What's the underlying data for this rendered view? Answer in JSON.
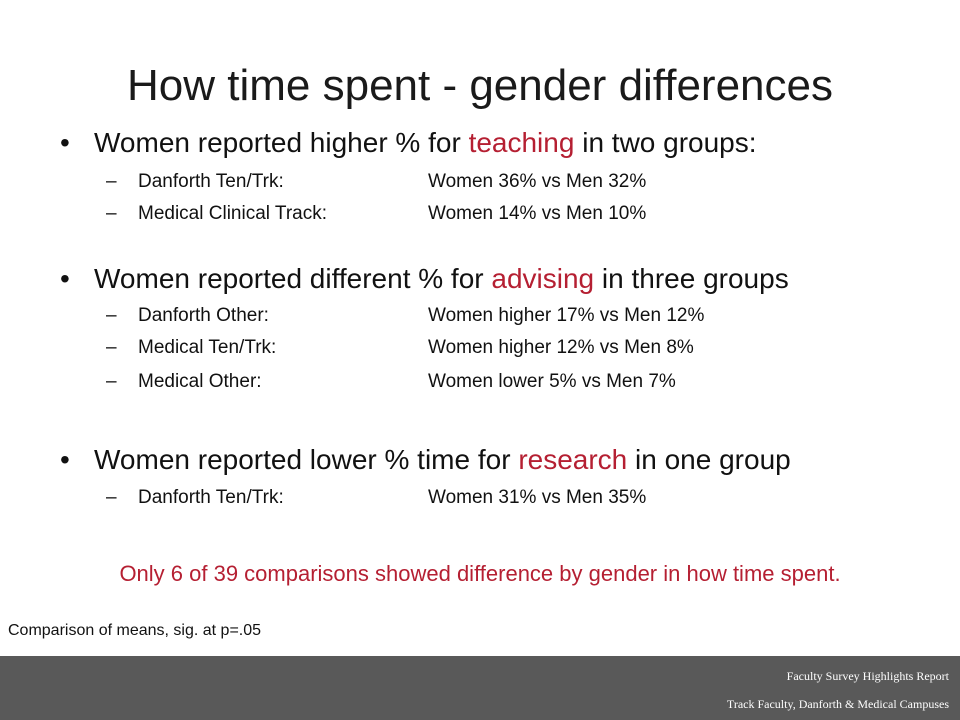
{
  "slide": {
    "title": "How time spent - gender differences"
  },
  "bullets": [
    {
      "marker": "•",
      "prefix": "Women reported higher % for ",
      "keyword": "teaching",
      "suffix": " in two groups:",
      "items": [
        {
          "dash": "–",
          "label": "Danforth Ten/Trk:",
          "value": "Women 36% vs Men 32%"
        },
        {
          "dash": "–",
          "label": "Medical Clinical Track:",
          "value": "Women 14% vs Men 10%"
        }
      ]
    },
    {
      "marker": "•",
      "prefix": "Women reported different % for ",
      "keyword": "advising",
      "suffix": " in three groups",
      "items": [
        {
          "dash": "–",
          "label": "Danforth Other:",
          "value": "Women higher 17% vs Men 12%"
        },
        {
          "dash": "–",
          "label": "Medical Ten/Trk:",
          "value": "Women higher 12% vs Men 8%"
        },
        {
          "dash": "–",
          "label": "Medical Other:",
          "value": "Women lower 5% vs Men 7%"
        }
      ]
    },
    {
      "marker": "•",
      "prefix": "Women reported lower % time for ",
      "keyword": "research",
      "suffix": " in one group",
      "items": [
        {
          "dash": "–",
          "label": "Danforth Ten/Trk:",
          "value": "Women 31% vs Men 35%"
        }
      ]
    }
  ],
  "note": "Only 6 of 39 comparisons showed difference by gender in how time spent.",
  "footnote": "Comparison of means, sig. at p=.05",
  "footer": {
    "line1": "Faculty Survey Highlights Report",
    "line2": "Track Faculty, Danforth & Medical Campuses"
  },
  "colors": {
    "accent": "#b51f32",
    "footer_bar": "#595959",
    "text": "#111111"
  }
}
